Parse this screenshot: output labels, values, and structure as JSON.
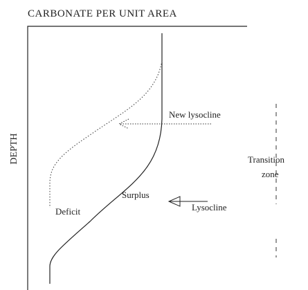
{
  "title": "CARBONATE PER UNIT AREA",
  "y_axis_label": "DEPTH",
  "labels": {
    "new_lysocline": "New lysocline",
    "lysocline": "Lysocline",
    "surplus": "Surplus",
    "deficit": "Deficit",
    "transition_zone": [
      "Transition",
      "zone"
    ]
  }
}
